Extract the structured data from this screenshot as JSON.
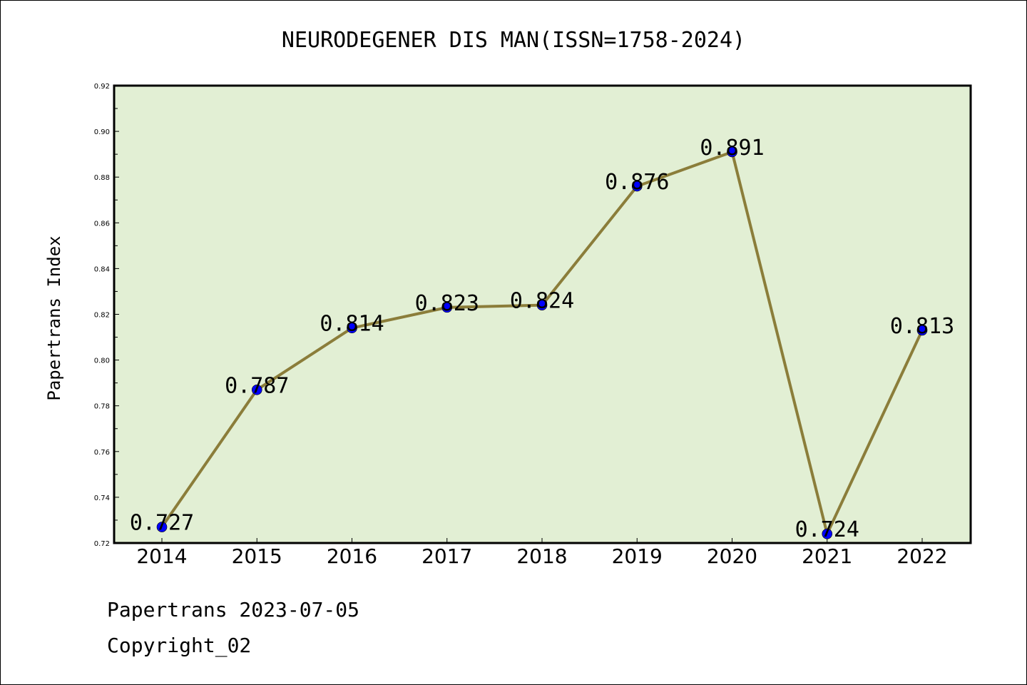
{
  "chart_data": {
    "type": "line",
    "title": "NEURODEGENER DIS MAN(ISSN=1758-2024)",
    "ylabel": "Papertrans Index",
    "xlabel": "",
    "categories": [
      "2014",
      "2015",
      "2016",
      "2017",
      "2018",
      "2019",
      "2020",
      "2021",
      "2022"
    ],
    "values": [
      0.727,
      0.787,
      0.814,
      0.823,
      0.824,
      0.876,
      0.891,
      0.724,
      0.813
    ],
    "data_labels": [
      "0.727",
      "0.787",
      "0.814",
      "0.823",
      "0.824",
      "0.876",
      "0.891",
      "0.724",
      "0.813"
    ],
    "ylim": [
      0.72,
      0.92
    ],
    "yticks": [
      "0.72",
      "0.74",
      "0.76",
      "0.78",
      "0.80",
      "0.82",
      "0.84",
      "0.86",
      "0.88",
      "0.90",
      "0.92"
    ],
    "grid": false,
    "colors": {
      "background": "#e2efd4",
      "line": "#8b7d3a",
      "marker": "#0000ff"
    }
  },
  "footer": {
    "line1": "Papertrans 2023-07-05",
    "line2": "Copyright_02"
  }
}
